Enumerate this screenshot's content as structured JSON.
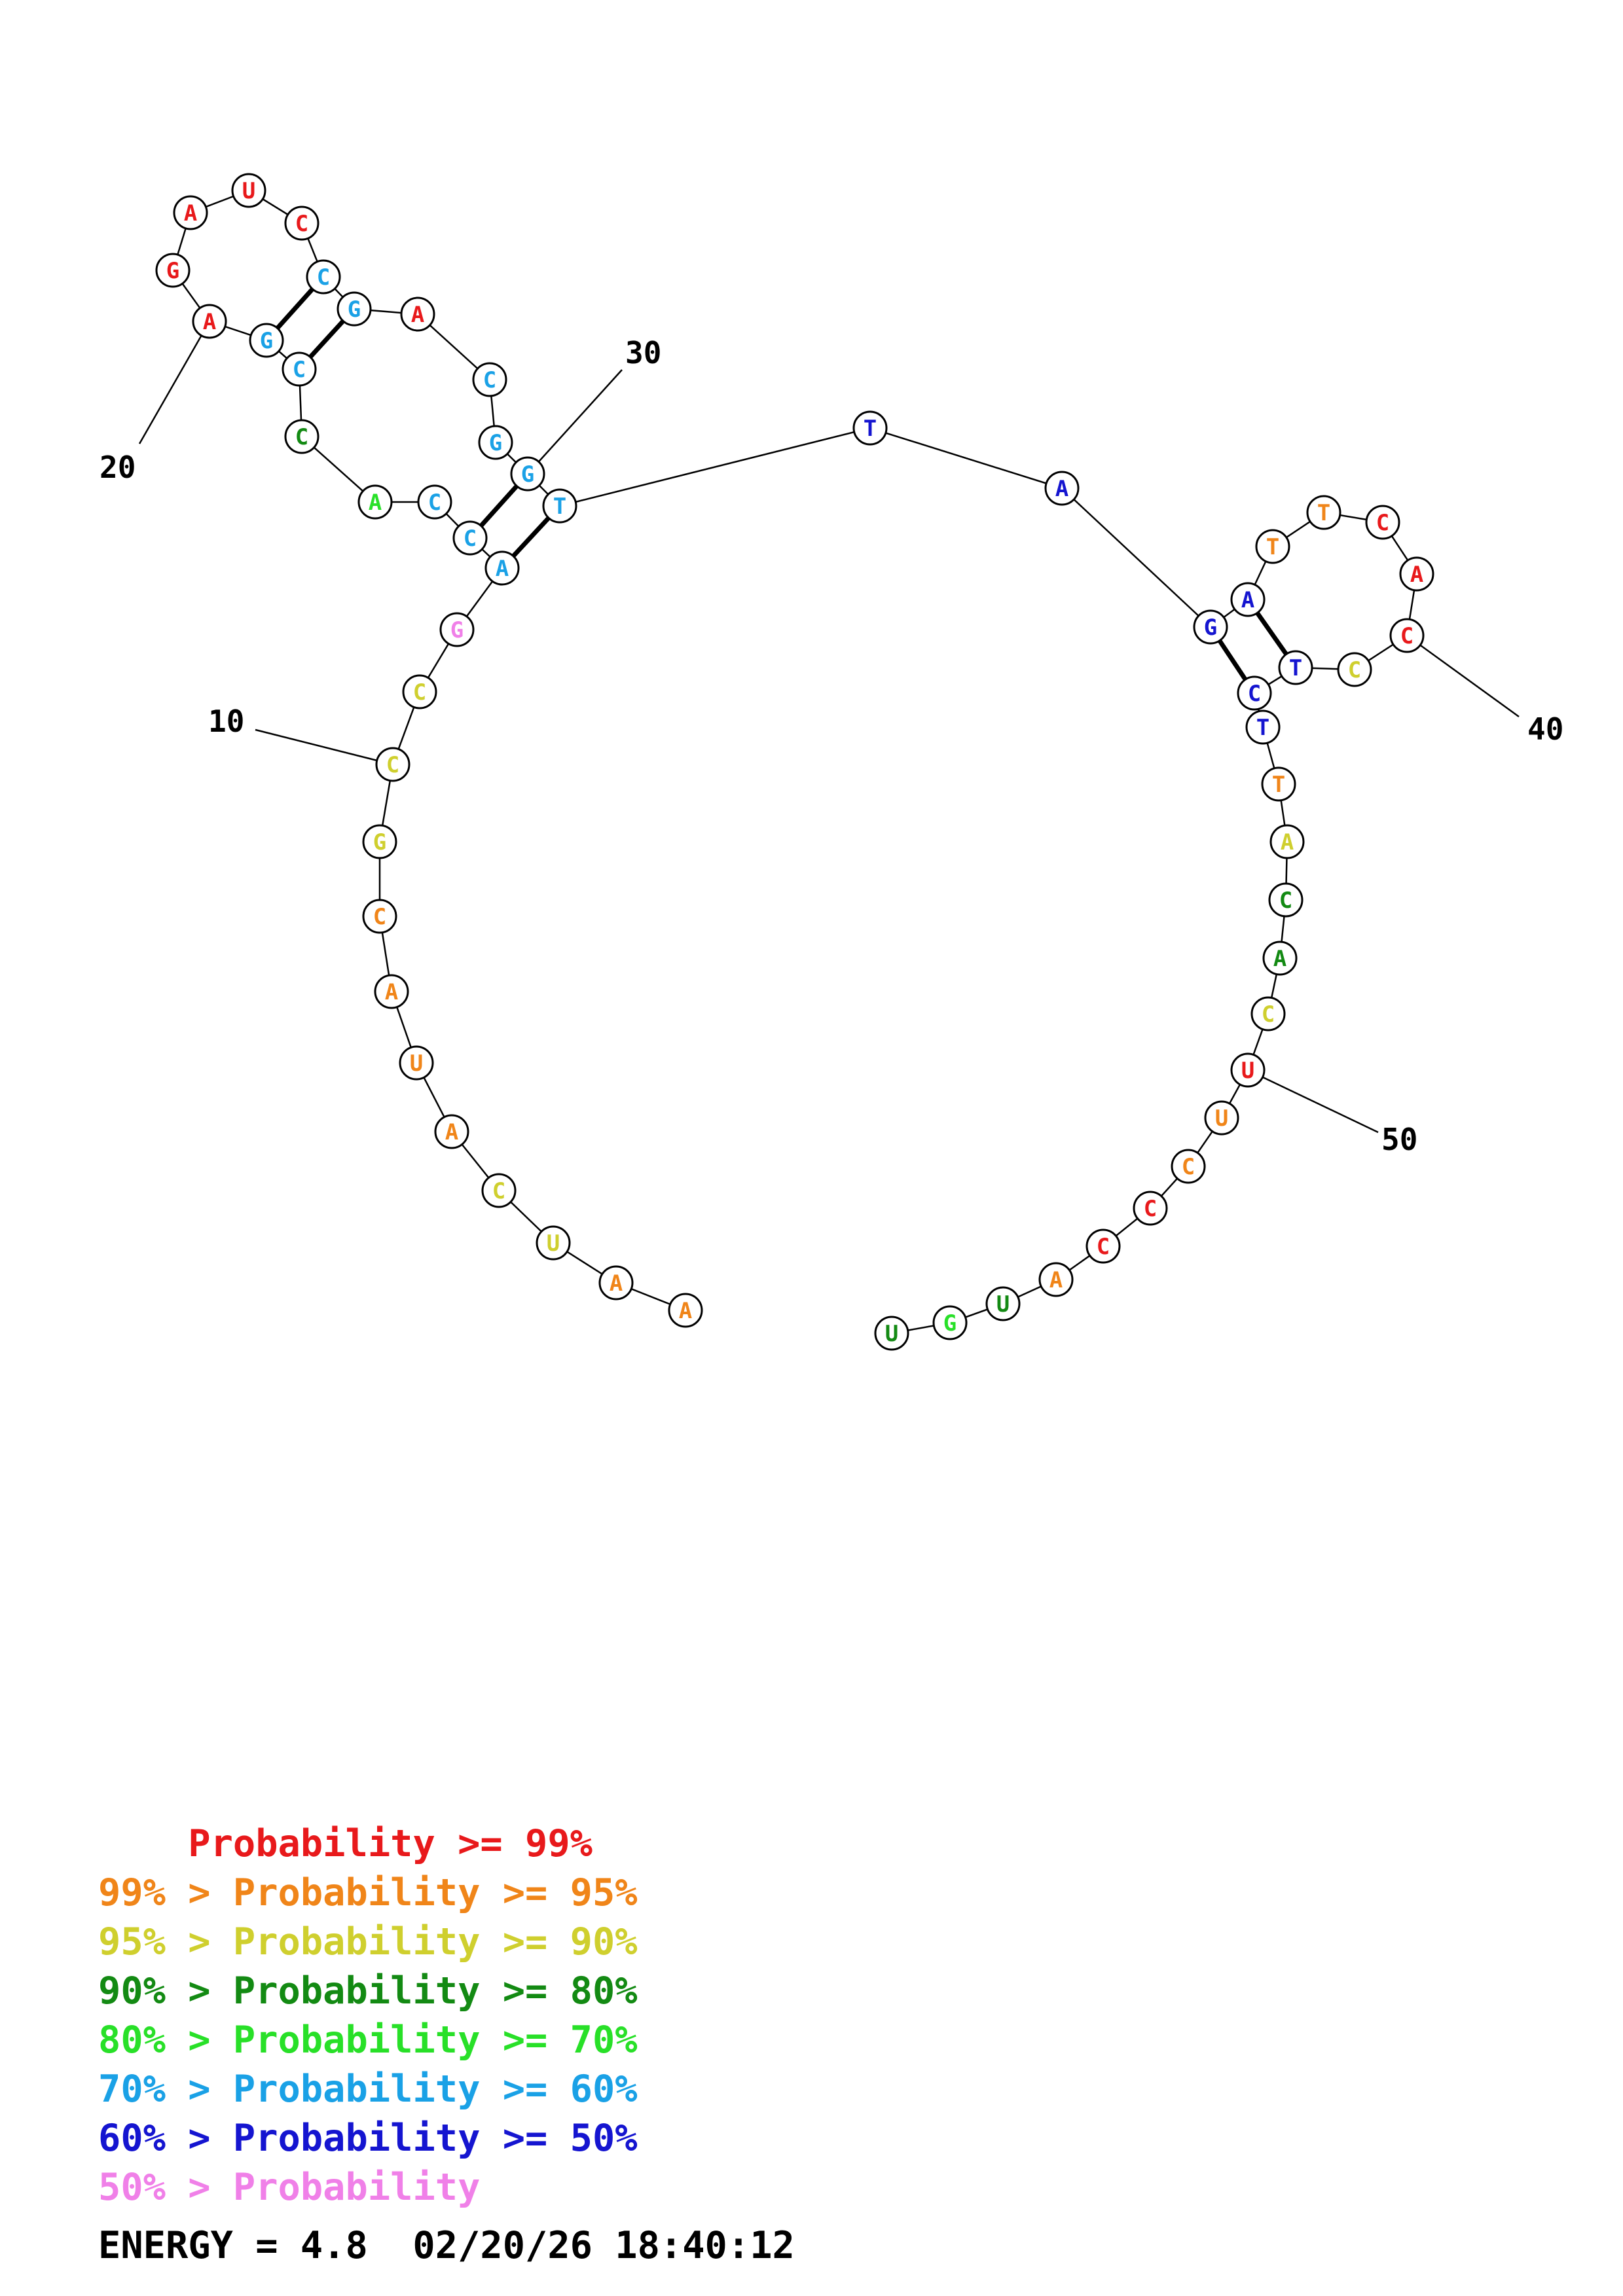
{
  "colors": {
    "p99": "#e8191b",
    "p95": "#f08519",
    "p90": "#cfcf2e",
    "p80": "#138a13",
    "p70": "#28e028",
    "p60": "#1aa1e6",
    "p50": "#1515d0",
    "plow": "#f080e8"
  },
  "nucleotides": [
    {
      "n": 1,
      "base": "A",
      "c": "p95"
    },
    {
      "n": 2,
      "base": "A",
      "c": "p95"
    },
    {
      "n": 3,
      "base": "U",
      "c": "p90"
    },
    {
      "n": 4,
      "base": "C",
      "c": "p90"
    },
    {
      "n": 5,
      "base": "A",
      "c": "p95"
    },
    {
      "n": 6,
      "base": "U",
      "c": "p95"
    },
    {
      "n": 7,
      "base": "A",
      "c": "p95"
    },
    {
      "n": 8,
      "base": "C",
      "c": "p95"
    },
    {
      "n": 9,
      "base": "G",
      "c": "p90"
    },
    {
      "n": 10,
      "base": "C",
      "c": "p90"
    },
    {
      "n": 11,
      "base": "C",
      "c": "p90"
    },
    {
      "n": 12,
      "base": "G",
      "c": "plow"
    },
    {
      "n": 13,
      "base": "A",
      "c": "p60"
    },
    {
      "n": 14,
      "base": "C",
      "c": "p60"
    },
    {
      "n": 15,
      "base": "C",
      "c": "p60"
    },
    {
      "n": 16,
      "base": "A",
      "c": "p70"
    },
    {
      "n": 17,
      "base": "C",
      "c": "p80"
    },
    {
      "n": 18,
      "base": "C",
      "c": "p60"
    },
    {
      "n": 19,
      "base": "G",
      "c": "p60"
    },
    {
      "n": 20,
      "base": "A",
      "c": "p99"
    },
    {
      "n": 21,
      "base": "G",
      "c": "p99"
    },
    {
      "n": 22,
      "base": "A",
      "c": "p99"
    },
    {
      "n": 23,
      "base": "U",
      "c": "p99"
    },
    {
      "n": 24,
      "base": "C",
      "c": "p99"
    },
    {
      "n": 25,
      "base": "C",
      "c": "p60"
    },
    {
      "n": 26,
      "base": "G",
      "c": "p60"
    },
    {
      "n": 27,
      "base": "A",
      "c": "p99"
    },
    {
      "n": 28,
      "base": "C",
      "c": "p60"
    },
    {
      "n": 29,
      "base": "G",
      "c": "p60"
    },
    {
      "n": 30,
      "base": "G",
      "c": "p60"
    },
    {
      "n": 31,
      "base": "T",
      "c": "p60"
    },
    {
      "n": 32,
      "base": "T",
      "c": "p50"
    },
    {
      "n": 33,
      "base": "A",
      "c": "p50"
    },
    {
      "n": 34,
      "base": "G",
      "c": "p50"
    },
    {
      "n": 35,
      "base": "A",
      "c": "p50"
    },
    {
      "n": 36,
      "base": "T",
      "c": "p95"
    },
    {
      "n": 37,
      "base": "T",
      "c": "p95"
    },
    {
      "n": 38,
      "base": "C",
      "c": "p99"
    },
    {
      "n": 39,
      "base": "A",
      "c": "p99"
    },
    {
      "n": 40,
      "base": "C",
      "c": "p99"
    },
    {
      "n": 41,
      "base": "C",
      "c": "p90"
    },
    {
      "n": 42,
      "base": "T",
      "c": "p50"
    },
    {
      "n": 43,
      "base": "C",
      "c": "p50"
    },
    {
      "n": 44,
      "base": "T",
      "c": "p50"
    },
    {
      "n": 45,
      "base": "T",
      "c": "p95"
    },
    {
      "n": 46,
      "base": "A",
      "c": "p90"
    },
    {
      "n": 47,
      "base": "C",
      "c": "p80"
    },
    {
      "n": 48,
      "base": "A",
      "c": "p80"
    },
    {
      "n": 49,
      "base": "C",
      "c": "p90"
    },
    {
      "n": 50,
      "base": "U",
      "c": "p99"
    },
    {
      "n": 51,
      "base": "U",
      "c": "p95"
    },
    {
      "n": 52,
      "base": "C",
      "c": "p95"
    },
    {
      "n": 53,
      "base": "C",
      "c": "p99"
    },
    {
      "n": 54,
      "base": "C",
      "c": "p99"
    },
    {
      "n": 55,
      "base": "A",
      "c": "p95"
    },
    {
      "n": 56,
      "base": "U",
      "c": "p80"
    },
    {
      "n": 57,
      "base": "G",
      "c": "p70"
    },
    {
      "n": 58,
      "base": "U",
      "c": "p80"
    }
  ],
  "pairs": [
    [
      13,
      31
    ],
    [
      14,
      30
    ],
    [
      18,
      26
    ],
    [
      19,
      25
    ],
    [
      34,
      43
    ],
    [
      35,
      42
    ]
  ],
  "position_labels": [
    {
      "n": 10,
      "text": "10"
    },
    {
      "n": 20,
      "text": "20"
    },
    {
      "n": 30,
      "text": "30"
    },
    {
      "n": 40,
      "text": "40"
    },
    {
      "n": 50,
      "text": "50"
    }
  ],
  "legend": [
    {
      "prefix": "    ",
      "mid": "",
      "text": "Probability >= 99%",
      "c": "p99"
    },
    {
      "prefix": "99% > ",
      "mid": "",
      "text": "Probability >= 95%",
      "c": "p95"
    },
    {
      "prefix": "95% > ",
      "mid": "",
      "text": "Probability >= 90%",
      "c": "p90"
    },
    {
      "prefix": "90% > ",
      "mid": "",
      "text": "Probability >= 80%",
      "c": "p80"
    },
    {
      "prefix": "80% > ",
      "mid": "",
      "text": "Probability >= 70%",
      "c": "p70"
    },
    {
      "prefix": "70% > ",
      "mid": "",
      "text": "Probability >= 60%",
      "c": "p60"
    },
    {
      "prefix": "60% > ",
      "mid": "",
      "text": "Probability >= 50%",
      "c": "p50"
    },
    {
      "prefix": "50% > ",
      "mid": "",
      "text": "Probability",
      "c": "plow"
    }
  ],
  "energy": {
    "text": "ENERGY = 4.8  02/20/26 18:40:12"
  }
}
